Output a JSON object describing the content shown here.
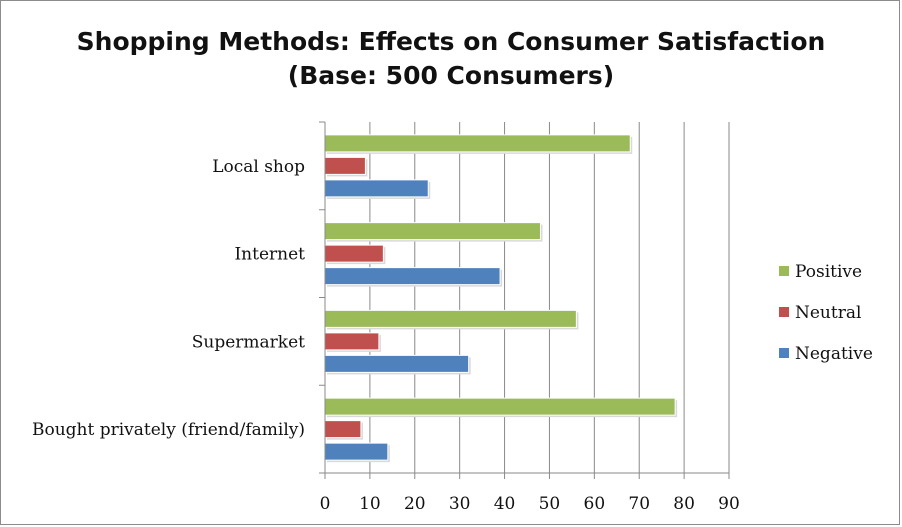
{
  "chart_data": {
    "type": "bar",
    "orientation": "horizontal",
    "title": "Shopping Methods: Effects on Consumer Satisfaction",
    "subtitle": "(Base: 500 Consumers)",
    "categories": [
      "Local shop",
      "Internet",
      "Supermarket",
      "Bought privately (friend/family)"
    ],
    "series": [
      {
        "name": "Positive",
        "color": "#9BBB59",
        "values": [
          68,
          48,
          56,
          78
        ]
      },
      {
        "name": "Neutral",
        "color": "#C0504D",
        "values": [
          9,
          13,
          12,
          8
        ]
      },
      {
        "name": "Negative",
        "color": "#4F81BD",
        "values": [
          23,
          39,
          32,
          14
        ]
      }
    ],
    "xlim": [
      0,
      90
    ],
    "xticks": [
      0,
      10,
      20,
      30,
      40,
      50,
      60,
      70,
      80,
      90
    ],
    "xlabel": "",
    "ylabel": "",
    "grid": "vertical",
    "legend_position": "right"
  }
}
